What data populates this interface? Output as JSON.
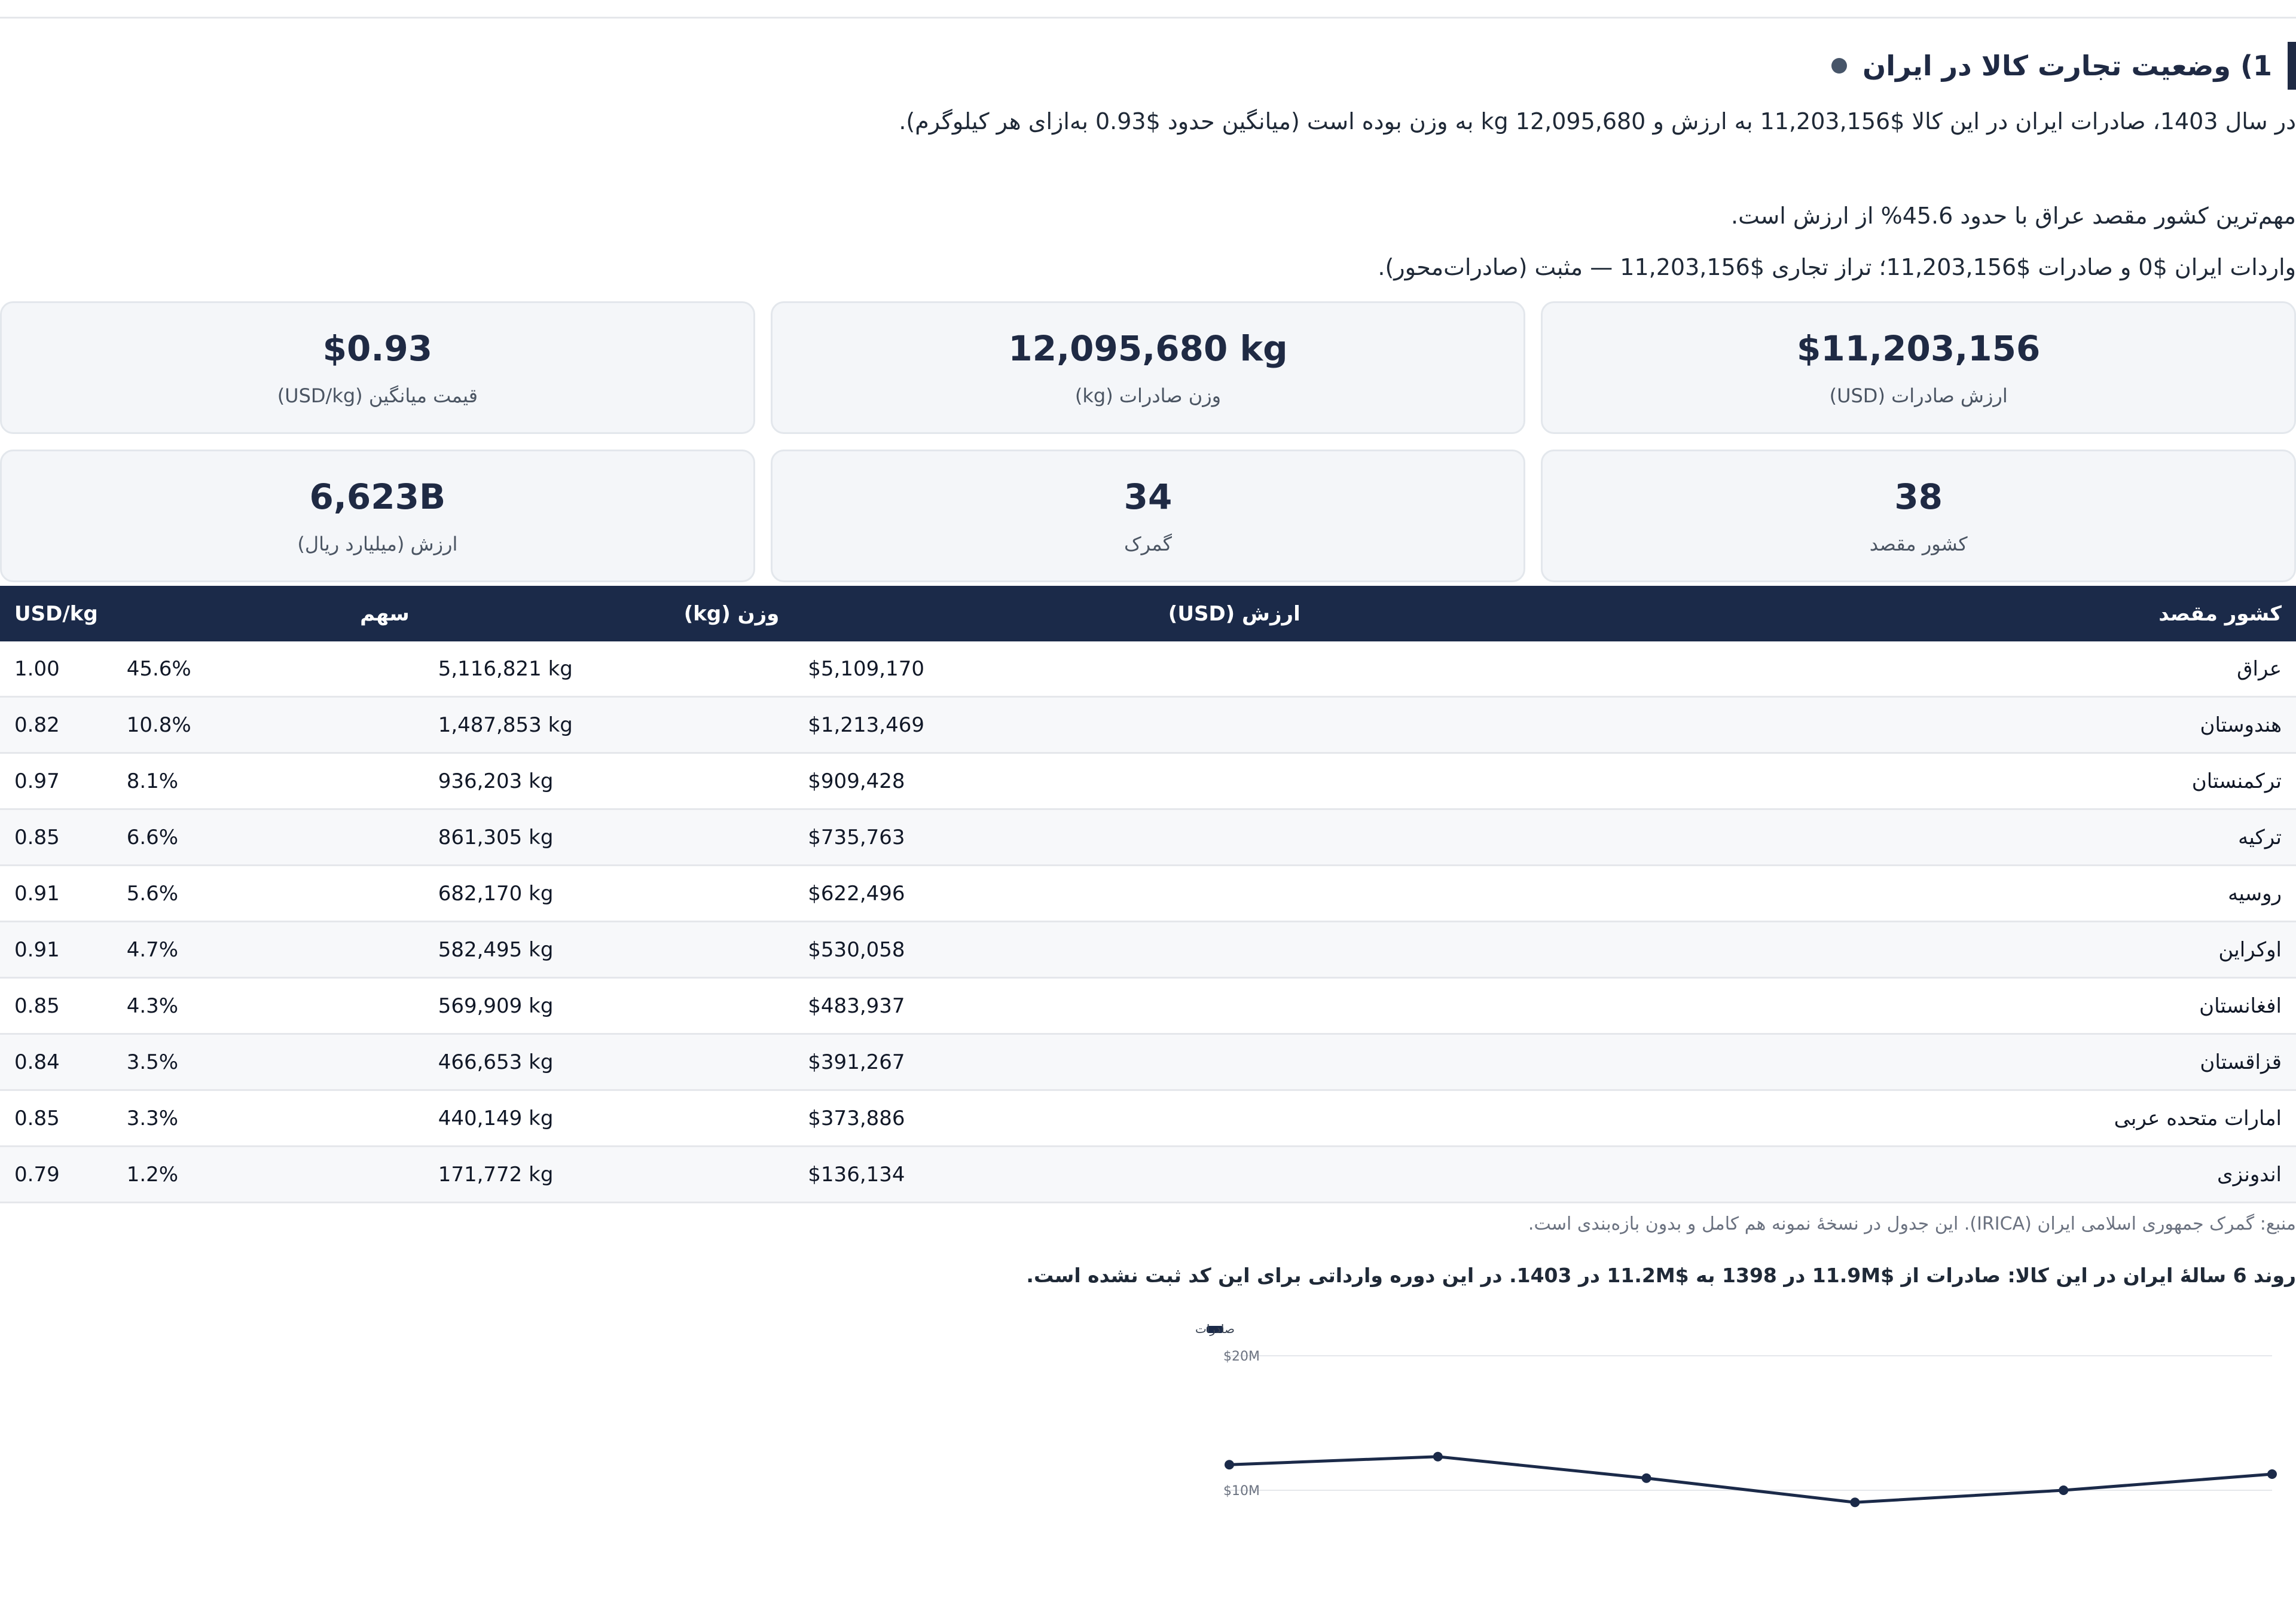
{
  "section": {
    "title": "1) وضعیت تجارت کالا در ایران",
    "summary_line1": "در سال 1403، صادرات ایران در این کالا $11,203,156 به ارزش و 12,095,680 kg به وزن بوده است (میانگین حدود $0.93 به‌ازای هر کیلوگرم).",
    "summary_line2": "مهم‌ترین کشور مقصد عراق با حدود 45.6% از ارزش است.",
    "summary_line3": "واردات ایران $0 و صادرات $11,203,156؛ تراز تجاری $11,203,156 — مثبت (صادرات‌محور)."
  },
  "kpis": [
    {
      "value": "$11,203,156",
      "label": "ارزش صادرات (USD)"
    },
    {
      "value": "12,095,680 kg",
      "label": "وزن صادرات (kg)"
    },
    {
      "value": "$0.93",
      "label": "قیمت میانگین (USD/kg)"
    },
    {
      "value": "38",
      "label": "کشور مقصد"
    },
    {
      "value": "34",
      "label": "گمرک"
    },
    {
      "value": "6,623B",
      "label": "ارزش (میلیارد ریال)"
    }
  ],
  "table": {
    "headers": [
      "کشور مقصد",
      "ارزش (USD)",
      "وزن (kg)",
      "سهم",
      "USD/kg"
    ],
    "rows": [
      [
        "عراق",
        "$5,109,170",
        "5,116,821 kg",
        "45.6%",
        "1.00"
      ],
      [
        "هندوستان",
        "$1,213,469",
        "1,487,853 kg",
        "10.8%",
        "0.82"
      ],
      [
        "ترکمنستان",
        "$909,428",
        "936,203 kg",
        "8.1%",
        "0.97"
      ],
      [
        "ترکیه",
        "$735,763",
        "861,305 kg",
        "6.6%",
        "0.85"
      ],
      [
        "روسیه",
        "$622,496",
        "682,170 kg",
        "5.6%",
        "0.91"
      ],
      [
        "اوکراین",
        "$530,058",
        "582,495 kg",
        "4.7%",
        "0.91"
      ],
      [
        "افغانستان",
        "$483,937",
        "569,909 kg",
        "4.3%",
        "0.85"
      ],
      [
        "قزاقستان",
        "$391,267",
        "466,653 kg",
        "3.5%",
        "0.84"
      ],
      [
        "امارات متحده عربی",
        "$373,886",
        "440,149 kg",
        "3.3%",
        "0.85"
      ],
      [
        "اندونزی",
        "$136,134",
        "171,772 kg",
        "1.2%",
        "0.79"
      ]
    ]
  },
  "source_note": "منبع: گمرک جمهوری اسلامی ایران (IRICA). این جدول در نسخهٔ نمونه هم کامل و بدون بازه‌بندی است.",
  "trend_note": "روند 6 سالهٔ ایران در این کالا: صادرات از $11.9M در 1398 به $11.2M در 1403. در این دوره وارداتی برای این کد ثبت نشده است.",
  "colors": {
    "header_bg": "#1b2a49",
    "line": "#1b2a49",
    "card_bg": "#f4f6f9"
  },
  "chart_data": {
    "type": "line",
    "legend": "صادرات",
    "legend_position": "top-left",
    "ytick_labels": [
      "$20M",
      "$10M"
    ],
    "yticks": [
      20,
      10
    ],
    "ylim": [
      0,
      20
    ],
    "grid": true,
    "series": [
      {
        "name": "صادرات",
        "values": [
          11.9,
          12.5,
          10.9,
          9.1,
          10.0,
          11.2
        ]
      }
    ]
  }
}
